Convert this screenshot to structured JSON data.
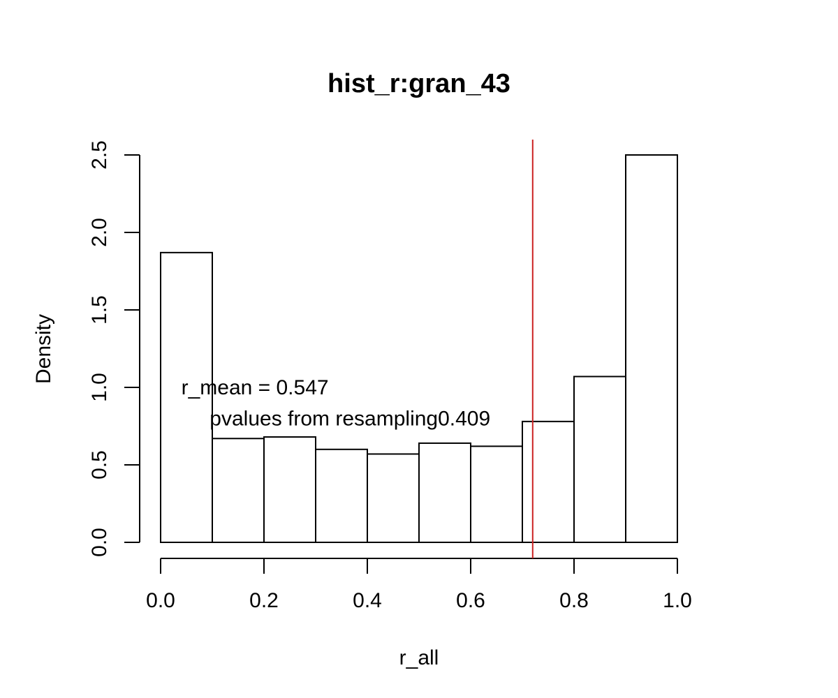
{
  "chart_data": {
    "type": "bar",
    "title": "hist_r:gran_43",
    "xlabel": "r_all",
    "ylabel": "Density",
    "bins": [
      {
        "x0": 0.0,
        "x1": 0.1,
        "density": 1.87
      },
      {
        "x0": 0.1,
        "x1": 0.2,
        "density": 0.67
      },
      {
        "x0": 0.2,
        "x1": 0.3,
        "density": 0.68
      },
      {
        "x0": 0.3,
        "x1": 0.4,
        "density": 0.6
      },
      {
        "x0": 0.4,
        "x1": 0.5,
        "density": 0.57
      },
      {
        "x0": 0.5,
        "x1": 0.6,
        "density": 0.64
      },
      {
        "x0": 0.6,
        "x1": 0.7,
        "density": 0.62
      },
      {
        "x0": 0.7,
        "x1": 0.8,
        "density": 0.78
      },
      {
        "x0": 0.8,
        "x1": 0.9,
        "density": 1.07
      },
      {
        "x0": 0.9,
        "x1": 1.0,
        "density": 2.5
      }
    ],
    "xlim": [
      0.0,
      1.0
    ],
    "ylim": [
      0.0,
      2.5
    ],
    "xticks": [
      "0.0",
      "0.2",
      "0.4",
      "0.6",
      "0.8",
      "1.0"
    ],
    "yticks": [
      "0.0",
      "0.5",
      "1.0",
      "1.5",
      "2.0",
      "2.5"
    ],
    "vline": {
      "x": 0.72,
      "color": "#cc2222"
    },
    "annotations": [
      {
        "text": "r_mean = 0.547",
        "x": 0.04,
        "y": 1.0
      },
      {
        "text": "pvalues from resampling0.409",
        "x": 0.095,
        "y": 0.8
      }
    ],
    "grid": false
  }
}
